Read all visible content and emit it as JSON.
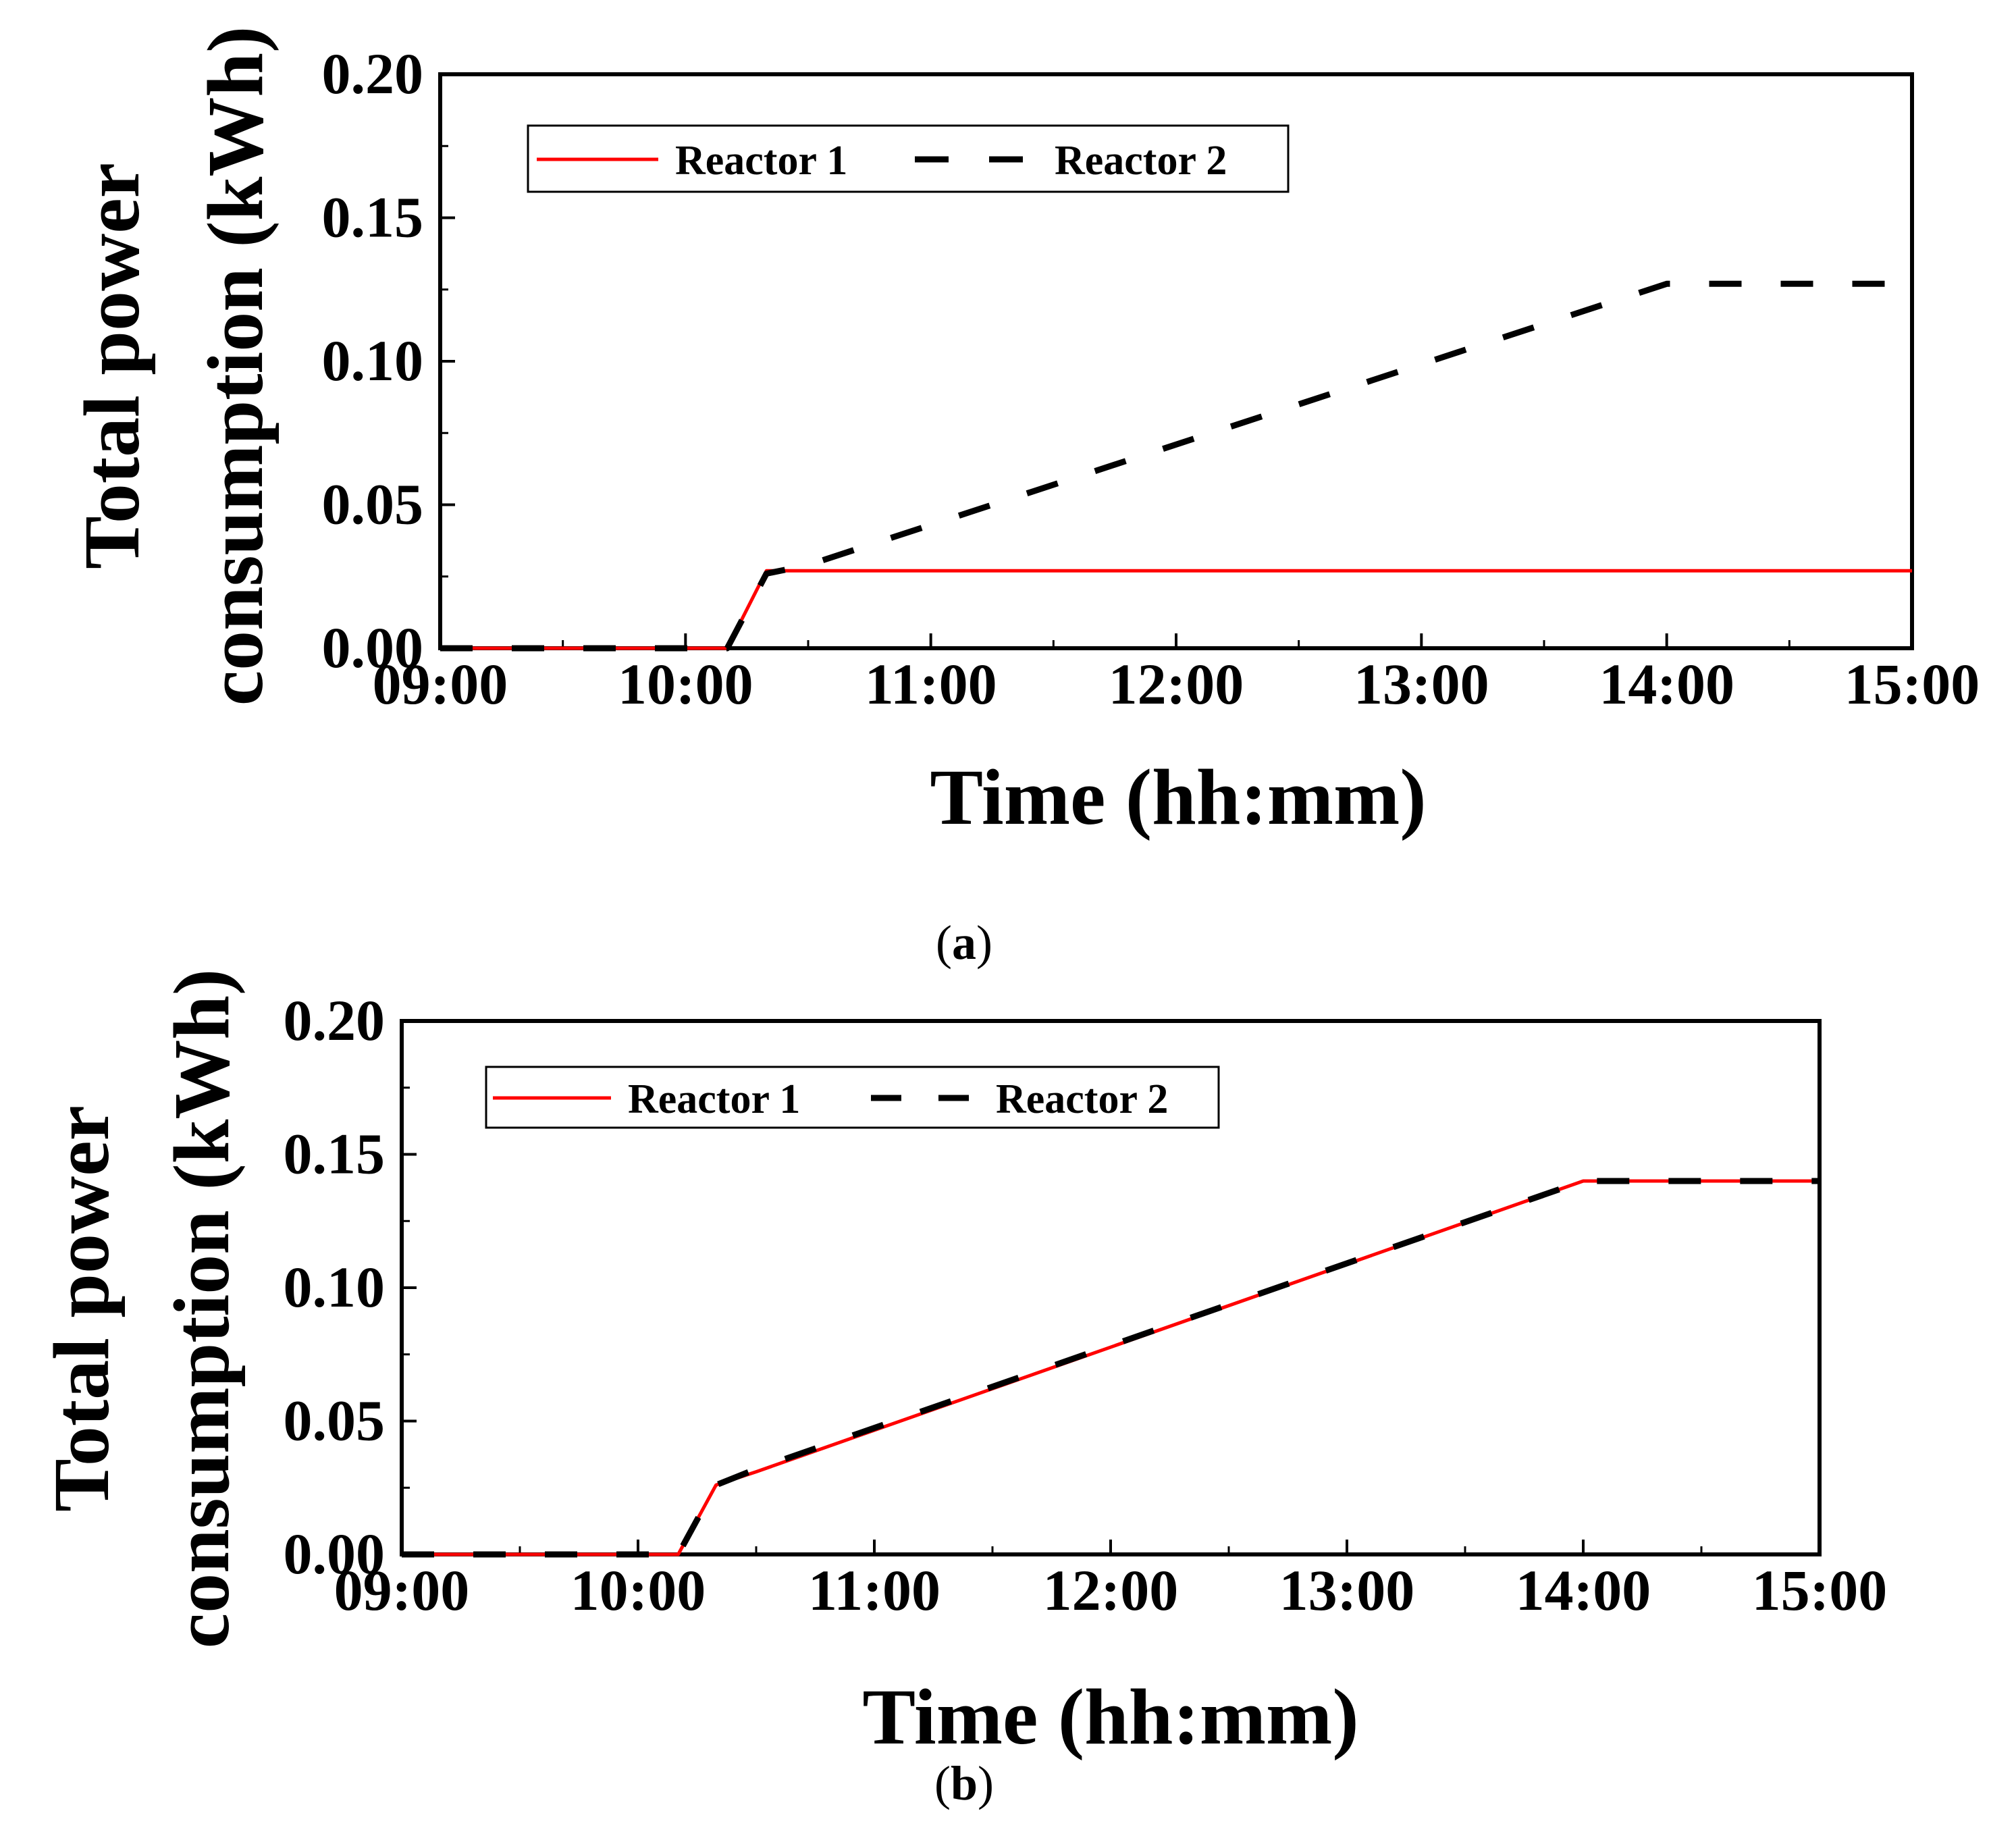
{
  "chart_data": [
    {
      "type": "line",
      "panel": "a",
      "xlabel": "Time (hh:mm)",
      "ylabel_line1": "Total power",
      "ylabel_line2": "consumption (kWh)",
      "x_ticks": [
        "09:00",
        "10:00",
        "11:00",
        "12:00",
        "13:00",
        "14:00",
        "15:00"
      ],
      "y_ticks": [
        "0.00",
        "0.05",
        "0.10",
        "0.15",
        "0.20"
      ],
      "xlim": [
        9.0,
        15.0
      ],
      "ylim": [
        0.0,
        0.2
      ],
      "legend": [
        "Reactor 1",
        "Reactor 2"
      ],
      "series": [
        {
          "name": "Reactor 1",
          "color": "#ff0000",
          "dash": "solid",
          "points": [
            [
              9.0,
              0.0
            ],
            [
              10.17,
              0.0
            ],
            [
              10.33,
              0.027
            ],
            [
              15.0,
              0.027
            ]
          ]
        },
        {
          "name": "Reactor 2",
          "color": "#000000",
          "dash": "dashed",
          "points": [
            [
              9.0,
              0.0
            ],
            [
              10.17,
              0.0
            ],
            [
              10.33,
              0.026
            ],
            [
              10.5,
              0.029
            ],
            [
              14.0,
              0.127
            ],
            [
              15.0,
              0.127
            ]
          ]
        }
      ]
    },
    {
      "type": "line",
      "panel": "b",
      "xlabel": "Time (hh:mm)",
      "ylabel_line1": "Total power",
      "ylabel_line2": "consumption (kWh)",
      "x_ticks": [
        "09:00",
        "10:00",
        "11:00",
        "12:00",
        "13:00",
        "14:00",
        "15:00"
      ],
      "y_ticks": [
        "0.00",
        "0.05",
        "0.10",
        "0.15",
        "0.20"
      ],
      "xlim": [
        9.0,
        15.0
      ],
      "ylim": [
        0.0,
        0.2
      ],
      "legend": [
        "Reactor 1",
        "Reactor 2"
      ],
      "series": [
        {
          "name": "Reactor 1",
          "color": "#ff0000",
          "dash": "solid",
          "points": [
            [
              9.0,
              0.0
            ],
            [
              10.17,
              0.0
            ],
            [
              10.33,
              0.026
            ],
            [
              10.5,
              0.031
            ],
            [
              14.0,
              0.14
            ],
            [
              15.0,
              0.14
            ]
          ]
        },
        {
          "name": "Reactor 2",
          "color": "#000000",
          "dash": "dashed",
          "points": [
            [
              9.0,
              0.0
            ],
            [
              10.17,
              0.0
            ],
            [
              10.33,
              0.026
            ],
            [
              10.5,
              0.032
            ],
            [
              14.0,
              0.14
            ],
            [
              15.0,
              0.14
            ]
          ]
        }
      ]
    }
  ],
  "captions": {
    "a": "a",
    "b": "b"
  }
}
